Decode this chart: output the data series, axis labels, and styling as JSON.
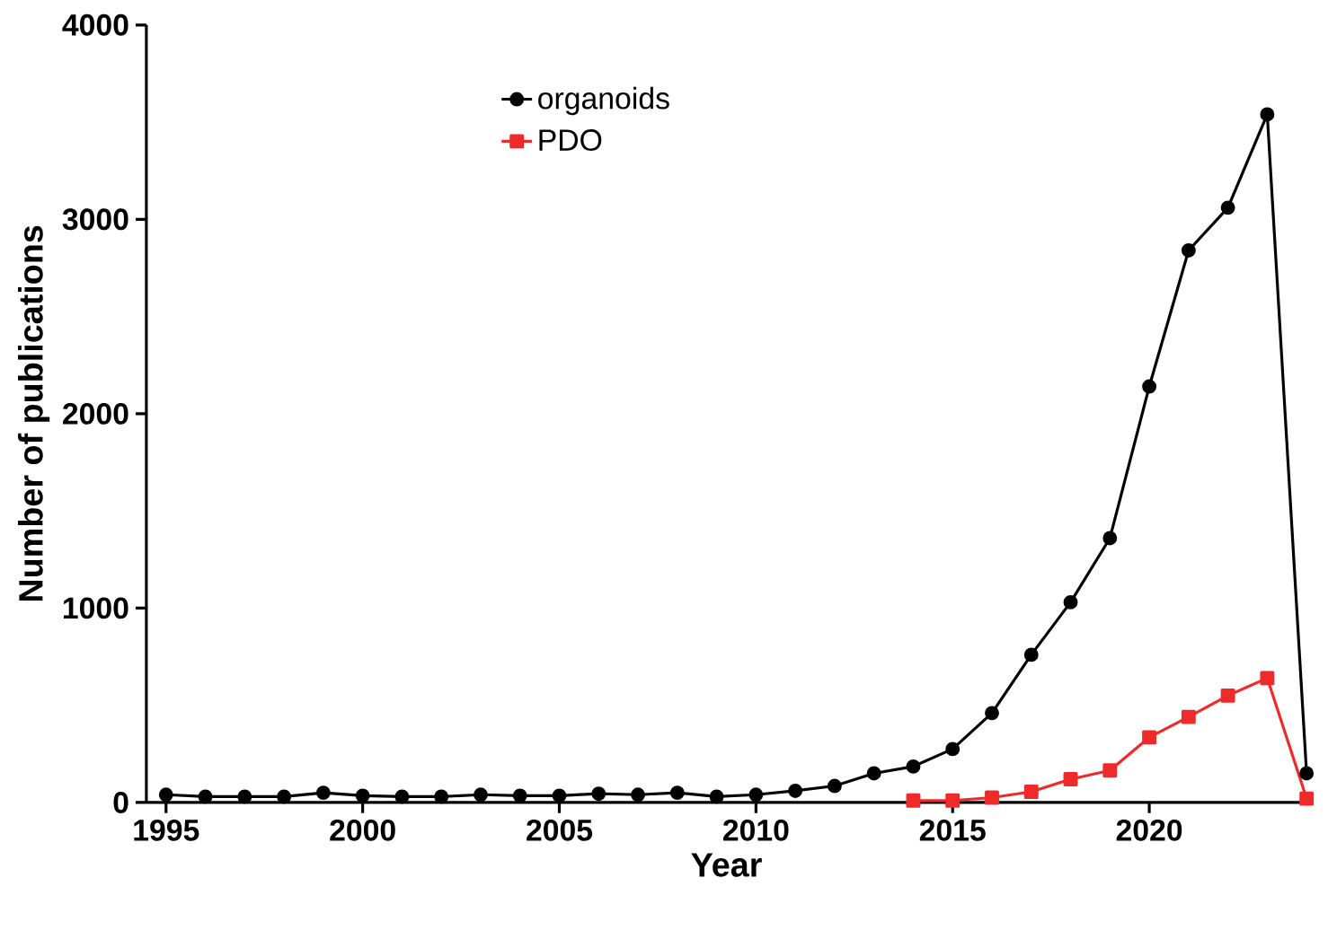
{
  "chart_data": {
    "type": "line",
    "xlabel": "Year",
    "ylabel": "Number of publications",
    "xlim": [
      1994.5,
      2024
    ],
    "xticks": [
      1995,
      2000,
      2005,
      2010,
      2015,
      2020
    ],
    "ylim": [
      0,
      4000
    ],
    "yticks": [
      0,
      1000,
      2000,
      3000,
      4000
    ],
    "grid": false,
    "legend": "top left",
    "line_style": "solid",
    "series": [
      {
        "name": "organoids",
        "color": "#000000",
        "marker": "circle",
        "x": [
          1995,
          1996,
          1997,
          1998,
          1999,
          2000,
          2001,
          2002,
          2003,
          2004,
          2005,
          2006,
          2007,
          2008,
          2009,
          2010,
          2011,
          2012,
          2013,
          2014,
          2015,
          2016,
          2017,
          2018,
          2019,
          2020,
          2021,
          2022,
          2023,
          2024
        ],
        "values": [
          40,
          30,
          30,
          30,
          50,
          35,
          30,
          30,
          40,
          35,
          35,
          45,
          40,
          50,
          30,
          40,
          60,
          85,
          150,
          185,
          275,
          460,
          760,
          1030,
          1360,
          2140,
          2840,
          3060,
          3540,
          150
        ]
      },
      {
        "name": "PDO",
        "color": "#ee2a2a",
        "marker": "square",
        "x": [
          2014,
          2015,
          2016,
          2017,
          2018,
          2019,
          2020,
          2021,
          2022,
          2023,
          2024
        ],
        "values": [
          10,
          10,
          25,
          55,
          120,
          165,
          335,
          440,
          550,
          640,
          20
        ]
      }
    ]
  }
}
